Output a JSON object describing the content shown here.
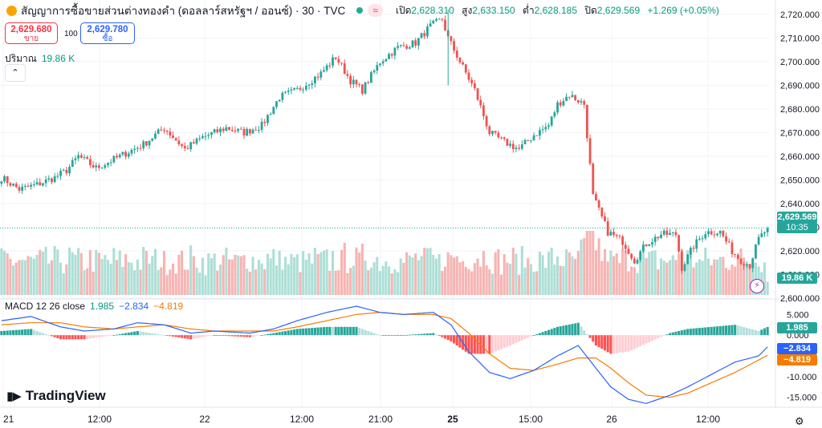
{
  "header": {
    "title": "สัญญาการซื้อขายส่วนต่างทองคำ (ดอลลาร์สหรัฐฯ / ออนซ์) · 30 · TVC",
    "approx_label": "≈",
    "open_label": "เปิด",
    "open": "2,628.310",
    "high_label": "สูง",
    "high": "2,633.150",
    "low_label": "ต่ำ",
    "low": "2,628.185",
    "close_label": "ปิด",
    "close": "2,629.569",
    "change": "+1.269 (+0.05%)"
  },
  "trade": {
    "sell_price": "2,629.680",
    "sell_label": "ขาย",
    "spread": "100",
    "buy_price": "2,629.780",
    "buy_label": "ซื้อ"
  },
  "volume_label": {
    "name": "ปริมาณ",
    "value": "19.86 K"
  },
  "macd_label": {
    "name": "MACD 12 26 close",
    "hist": "1.985",
    "macd": "−2.834",
    "signal": "−4.819"
  },
  "brand": "TradingView",
  "price_axis": {
    "current": "2,629.569",
    "countdown": "10:35",
    "volume_tag": "19.86 K",
    "ticks": [
      "2,720.000",
      "2,710.000",
      "2,700.000",
      "2,690.000",
      "2,680.000",
      "2,670.000",
      "2,660.000",
      "2,650.000",
      "2,640.000",
      "2,630.000",
      "2,620.000",
      "2,610.000",
      "2,600.000"
    ]
  },
  "macd_axis": {
    "ticks": [
      "5.000",
      "0.000",
      "-10.000",
      "-15.000"
    ],
    "hist_tag": "1.985",
    "macd_tag": "−2.834",
    "signal_tag": "−4.819"
  },
  "time_axis": [
    "21",
    "12:00",
    "22",
    "12:00",
    "21:00",
    "25",
    "15:00",
    "26",
    "12:00"
  ],
  "colors": {
    "up": "#26a69a",
    "down": "#ef5350",
    "macd": "#2962ff",
    "signal": "#f57c00",
    "grid": "#f0f3fa"
  },
  "chart_data": {
    "type": "candlestick",
    "symbol": "TVC:GOLD 30",
    "price_range": [
      2600,
      2722
    ],
    "price_keypoints": [
      [
        0,
        2651
      ],
      [
        6,
        2646
      ],
      [
        12,
        2648
      ],
      [
        18,
        2651
      ],
      [
        22,
        2654
      ],
      [
        26,
        2660
      ],
      [
        32,
        2655
      ],
      [
        40,
        2660
      ],
      [
        48,
        2665
      ],
      [
        55,
        2672
      ],
      [
        62,
        2663
      ],
      [
        68,
        2668
      ],
      [
        76,
        2672
      ],
      [
        82,
        2670
      ],
      [
        88,
        2673
      ],
      [
        94,
        2685
      ],
      [
        100,
        2688
      ],
      [
        108,
        2695
      ],
      [
        113,
        2702
      ],
      [
        118,
        2692
      ],
      [
        122,
        2688
      ],
      [
        128,
        2700
      ],
      [
        134,
        2706
      ],
      [
        140,
        2708
      ],
      [
        145,
        2715
      ],
      [
        149,
        2718
      ],
      [
        151,
        2710
      ],
      [
        155,
        2700
      ],
      [
        160,
        2688
      ],
      [
        165,
        2670
      ],
      [
        170,
        2666
      ],
      [
        175,
        2663
      ],
      [
        180,
        2669
      ],
      [
        185,
        2673
      ],
      [
        188,
        2682
      ],
      [
        192,
        2686
      ],
      [
        197,
        2682
      ],
      [
        200,
        2643
      ],
      [
        205,
        2628
      ],
      [
        210,
        2624
      ],
      [
        214,
        2616
      ],
      [
        218,
        2623
      ],
      [
        223,
        2627
      ],
      [
        228,
        2627
      ],
      [
        230,
        2613
      ],
      [
        234,
        2622
      ],
      [
        238,
        2628
      ],
      [
        243,
        2628
      ],
      [
        247,
        2620
      ],
      [
        250,
        2616
      ],
      [
        253,
        2614
      ],
      [
        256,
        2625
      ],
      [
        259,
        2629.569
      ]
    ],
    "volume_range": [
      0,
      95000
    ],
    "volume_last": 19860,
    "macd_range": [
      -17,
      7
    ],
    "macd_keypoints": [
      [
        0,
        3.5
      ],
      [
        10,
        4.5
      ],
      [
        20,
        2.0
      ],
      [
        28,
        1.0
      ],
      [
        38,
        1.5
      ],
      [
        46,
        3.0
      ],
      [
        55,
        2.5
      ],
      [
        64,
        0.5
      ],
      [
        72,
        1.0
      ],
      [
        84,
        0.5
      ],
      [
        92,
        1.5
      ],
      [
        100,
        3.5
      ],
      [
        110,
        5.5
      ],
      [
        120,
        7.0
      ],
      [
        128,
        5.5
      ],
      [
        136,
        5.0
      ],
      [
        146,
        5.5
      ],
      [
        152,
        2.5
      ],
      [
        158,
        -4.0
      ],
      [
        165,
        -9.0
      ],
      [
        172,
        -10.5
      ],
      [
        180,
        -8.5
      ],
      [
        188,
        -5.0
      ],
      [
        195,
        -2.5
      ],
      [
        201,
        -8.0
      ],
      [
        206,
        -12.5
      ],
      [
        212,
        -15.5
      ],
      [
        218,
        -16.5
      ],
      [
        226,
        -14.5
      ],
      [
        232,
        -12.5
      ],
      [
        240,
        -9.5
      ],
      [
        248,
        -6.5
      ],
      [
        256,
        -5.0
      ],
      [
        259,
        -2.834
      ]
    ],
    "signal_keypoints": [
      [
        0,
        2.5
      ],
      [
        10,
        3.0
      ],
      [
        20,
        3.0
      ],
      [
        28,
        2.0
      ],
      [
        38,
        1.5
      ],
      [
        46,
        2.0
      ],
      [
        55,
        2.5
      ],
      [
        64,
        1.5
      ],
      [
        72,
        1.0
      ],
      [
        84,
        1.0
      ],
      [
        92,
        1.0
      ],
      [
        100,
        2.0
      ],
      [
        110,
        3.5
      ],
      [
        120,
        5.0
      ],
      [
        128,
        5.5
      ],
      [
        136,
        5.0
      ],
      [
        146,
        5.0
      ],
      [
        152,
        4.0
      ],
      [
        158,
        0.5
      ],
      [
        165,
        -4.5
      ],
      [
        172,
        -8.0
      ],
      [
        180,
        -8.5
      ],
      [
        188,
        -7.0
      ],
      [
        195,
        -5.5
      ],
      [
        201,
        -5.5
      ],
      [
        206,
        -8.0
      ],
      [
        212,
        -11.5
      ],
      [
        218,
        -14.5
      ],
      [
        226,
        -15.0
      ],
      [
        232,
        -14.0
      ],
      [
        240,
        -11.5
      ],
      [
        248,
        -9.0
      ],
      [
        256,
        -6.0
      ],
      [
        259,
        -4.819
      ]
    ],
    "macd_last": -2.834,
    "signal_last": -4.819,
    "hist_last": 1.985
  }
}
